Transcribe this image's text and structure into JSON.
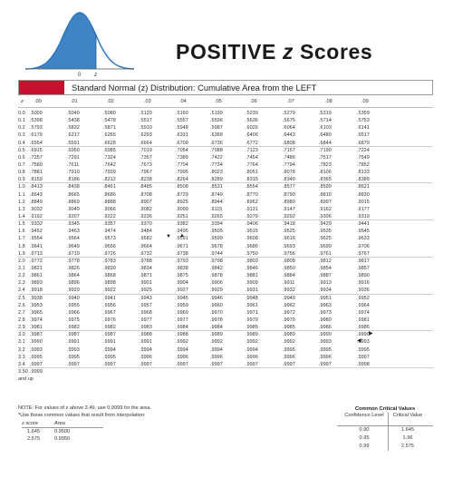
{
  "title": {
    "main": "POSITIVE ",
    "z": "z",
    "rest": " Scores"
  },
  "curve": {
    "zero_label": "0",
    "z_label": "z",
    "shade_color": "#1f6fb8",
    "line_color": "#2b74c4"
  },
  "table_caption": "Standard Normal (z) Distribution: Cumulative Area from the LEFT",
  "accent_color": "#c8102e",
  "columns": [
    "z",
    ".00",
    ".01",
    ".02",
    ".03",
    ".04",
    ".05",
    ".06",
    ".07",
    ".08",
    ".09"
  ],
  "rows": [
    [
      "0.0",
      ".5000",
      ".5040",
      ".5080",
      ".5120",
      ".5160",
      ".5199",
      ".5239",
      ".5279",
      ".5319",
      ".5359"
    ],
    [
      "0.1",
      ".5398",
      ".5438",
      ".5478",
      ".5517",
      ".5557",
      ".5596",
      ".5636",
      ".5675",
      ".5714",
      ".5753"
    ],
    [
      "0.2",
      ".5793",
      ".5832",
      ".5871",
      ".5910",
      ".5948",
      ".5987",
      ".6026",
      ".6064",
      ".6103",
      ".6141"
    ],
    [
      "0.3",
      ".6179",
      ".6217",
      ".6255",
      ".6293",
      ".6331",
      ".6368",
      ".6406",
      ".6443",
      ".6480",
      ".6517"
    ],
    [
      "0.4",
      ".6554",
      ".6591",
      ".6628",
      ".6664",
      ".6700",
      ".6736",
      ".6772",
      ".6808",
      ".6844",
      ".6879"
    ],
    [
      "0.5",
      ".6915",
      ".6950",
      ".6985",
      ".7019",
      ".7054",
      ".7088",
      ".7123",
      ".7157",
      ".7190",
      ".7224"
    ],
    [
      "0.6",
      ".7257",
      ".7291",
      ".7324",
      ".7357",
      ".7389",
      ".7422",
      ".7454",
      ".7486",
      ".7517",
      ".7549"
    ],
    [
      "0.7",
      ".7580",
      ".7611",
      ".7642",
      ".7673",
      ".7704",
      ".7734",
      ".7764",
      ".7794",
      ".7823",
      ".7852"
    ],
    [
      "0.8",
      ".7881",
      ".7910",
      ".7939",
      ".7967",
      ".7995",
      ".8023",
      ".8051",
      ".8078",
      ".8106",
      ".8133"
    ],
    [
      "0.9",
      ".8159",
      ".8186",
      ".8212",
      ".8238",
      ".8264",
      ".8289",
      ".8315",
      ".8340",
      ".8365",
      ".8389"
    ],
    [
      "1.0",
      ".8413",
      ".8438",
      ".8461",
      ".8485",
      ".8508",
      ".8531",
      ".8554",
      ".8577",
      ".8599",
      ".8621"
    ],
    [
      "1.1",
      ".8643",
      ".8665",
      ".8686",
      ".8708",
      ".8729",
      ".8749",
      ".8770",
      ".8790",
      ".8810",
      ".8830"
    ],
    [
      "1.2",
      ".8849",
      ".8869",
      ".8888",
      ".8907",
      ".8925",
      ".8944",
      ".8962",
      ".8980",
      ".8997",
      ".9015"
    ],
    [
      "1.3",
      ".9032",
      ".9049",
      ".9066",
      ".9082",
      ".9099",
      ".9115",
      ".9131",
      ".9147",
      ".9162",
      ".9177"
    ],
    [
      "1.4",
      ".9192",
      ".9207",
      ".9222",
      ".9236",
      ".9251",
      ".9265",
      ".9279",
      ".9292",
      ".9306",
      ".9319"
    ],
    [
      "1.5",
      ".9332",
      ".9345",
      ".9357",
      ".9370",
      ".9382",
      ".9394",
      ".9406",
      ".9418",
      ".9429",
      ".9441"
    ],
    [
      "1.6",
      ".9452",
      ".9463",
      ".9474",
      ".9484",
      ".9495",
      ".9505",
      ".9515",
      ".9525",
      ".9535",
      ".9545"
    ],
    [
      "1.7",
      ".9554",
      ".9564",
      ".9573",
      ".9582",
      ".9591",
      ".9599",
      ".9608",
      ".9616",
      ".9625",
      ".9633"
    ],
    [
      "1.8",
      ".9641",
      ".9649",
      ".9656",
      ".9664",
      ".9671",
      ".9678",
      ".9686",
      ".9693",
      ".9699",
      ".9706"
    ],
    [
      "1.9",
      ".9713",
      ".9719",
      ".9726",
      ".9732",
      ".9738",
      ".9744",
      ".9750",
      ".9756",
      ".9761",
      ".9767"
    ],
    [
      "2.0",
      ".9772",
      ".9778",
      ".9783",
      ".9788",
      ".9793",
      ".9798",
      ".9803",
      ".9808",
      ".9812",
      ".9817"
    ],
    [
      "2.1",
      ".9821",
      ".9826",
      ".9830",
      ".9834",
      ".9838",
      ".9842",
      ".9846",
      ".9850",
      ".9854",
      ".9857"
    ],
    [
      "2.2",
      ".9861",
      ".9864",
      ".9868",
      ".9871",
      ".9875",
      ".9878",
      ".9881",
      ".9884",
      ".9887",
      ".9890"
    ],
    [
      "2.3",
      ".9893",
      ".9896",
      ".9898",
      ".9901",
      ".9904",
      ".9906",
      ".9909",
      ".9911",
      ".9913",
      ".9916"
    ],
    [
      "2.4",
      ".9918",
      ".9920",
      ".9922",
      ".9925",
      ".9927",
      ".9929",
      ".9931",
      ".9932",
      ".9934",
      ".9936"
    ],
    [
      "2.5",
      ".9938",
      ".9940",
      ".9941",
      ".9943",
      ".9945",
      ".9946",
      ".9948",
      ".9949",
      ".9951",
      ".9952"
    ],
    [
      "2.6",
      ".9953",
      ".9955",
      ".9956",
      ".9957",
      ".9959",
      ".9960",
      ".9961",
      ".9962",
      ".9963",
      ".9964"
    ],
    [
      "2.7",
      ".9965",
      ".9966",
      ".9967",
      ".9968",
      ".9969",
      ".9970",
      ".9971",
      ".9972",
      ".9973",
      ".9974"
    ],
    [
      "2.8",
      ".9974",
      ".9975",
      ".9976",
      ".9977",
      ".9977",
      ".9978",
      ".9979",
      ".9979",
      ".9980",
      ".9981"
    ],
    [
      "2.9",
      ".9981",
      ".9982",
      ".9982",
      ".9983",
      ".9984",
      ".9984",
      ".9985",
      ".9985",
      ".9986",
      ".9986"
    ],
    [
      "3.0",
      ".9987",
      ".9987",
      ".9987",
      ".9988",
      ".9988",
      ".9989",
      ".9989",
      ".9989",
      ".9990",
      ".9990"
    ],
    [
      "3.1",
      ".9990",
      ".9991",
      ".9991",
      ".9991",
      ".9992",
      ".9992",
      ".9992",
      ".9992",
      ".9993",
      ".9993"
    ],
    [
      "3.2",
      ".9993",
      ".9993",
      ".9994",
      ".9994",
      ".9994",
      ".9994",
      ".9994",
      ".9995",
      ".9995",
      ".9995"
    ],
    [
      "3.3",
      ".9995",
      ".9995",
      ".9995",
      ".9996",
      ".9996",
      ".9996",
      ".9996",
      ".9996",
      ".9996",
      ".9997"
    ],
    [
      "3.4",
      ".9997",
      ".9997",
      ".9997",
      ".9997",
      ".9997",
      ".9997",
      ".9997",
      ".9997",
      ".9997",
      ".9998"
    ],
    [
      "3.50",
      ".9999",
      "",
      "",
      "",
      "",
      "",
      "",
      "",
      "",
      ""
    ],
    [
      "and up",
      "",
      "",
      "",
      "",
      "",
      "",
      "",
      "",
      "",
      ""
    ]
  ],
  "notes": {
    "note1": "NOTE: For values of z above 3.49, use 0.9999 for the area.",
    "note2": "*Use these common values that result from interpolation:",
    "interp_headers": [
      "z score",
      "Area"
    ],
    "interp_rows": [
      [
        "1.645",
        "0.9500"
      ],
      [
        "2.575",
        "0.9950"
      ]
    ]
  },
  "critical_values": {
    "title": "Common Critical Values",
    "headers": [
      "Confidence Level",
      "Critical Value"
    ],
    "rows": [
      [
        "0.90",
        "1.645"
      ],
      [
        "0.95",
        "1.96"
      ],
      [
        "0.99",
        "2.575"
      ]
    ]
  }
}
